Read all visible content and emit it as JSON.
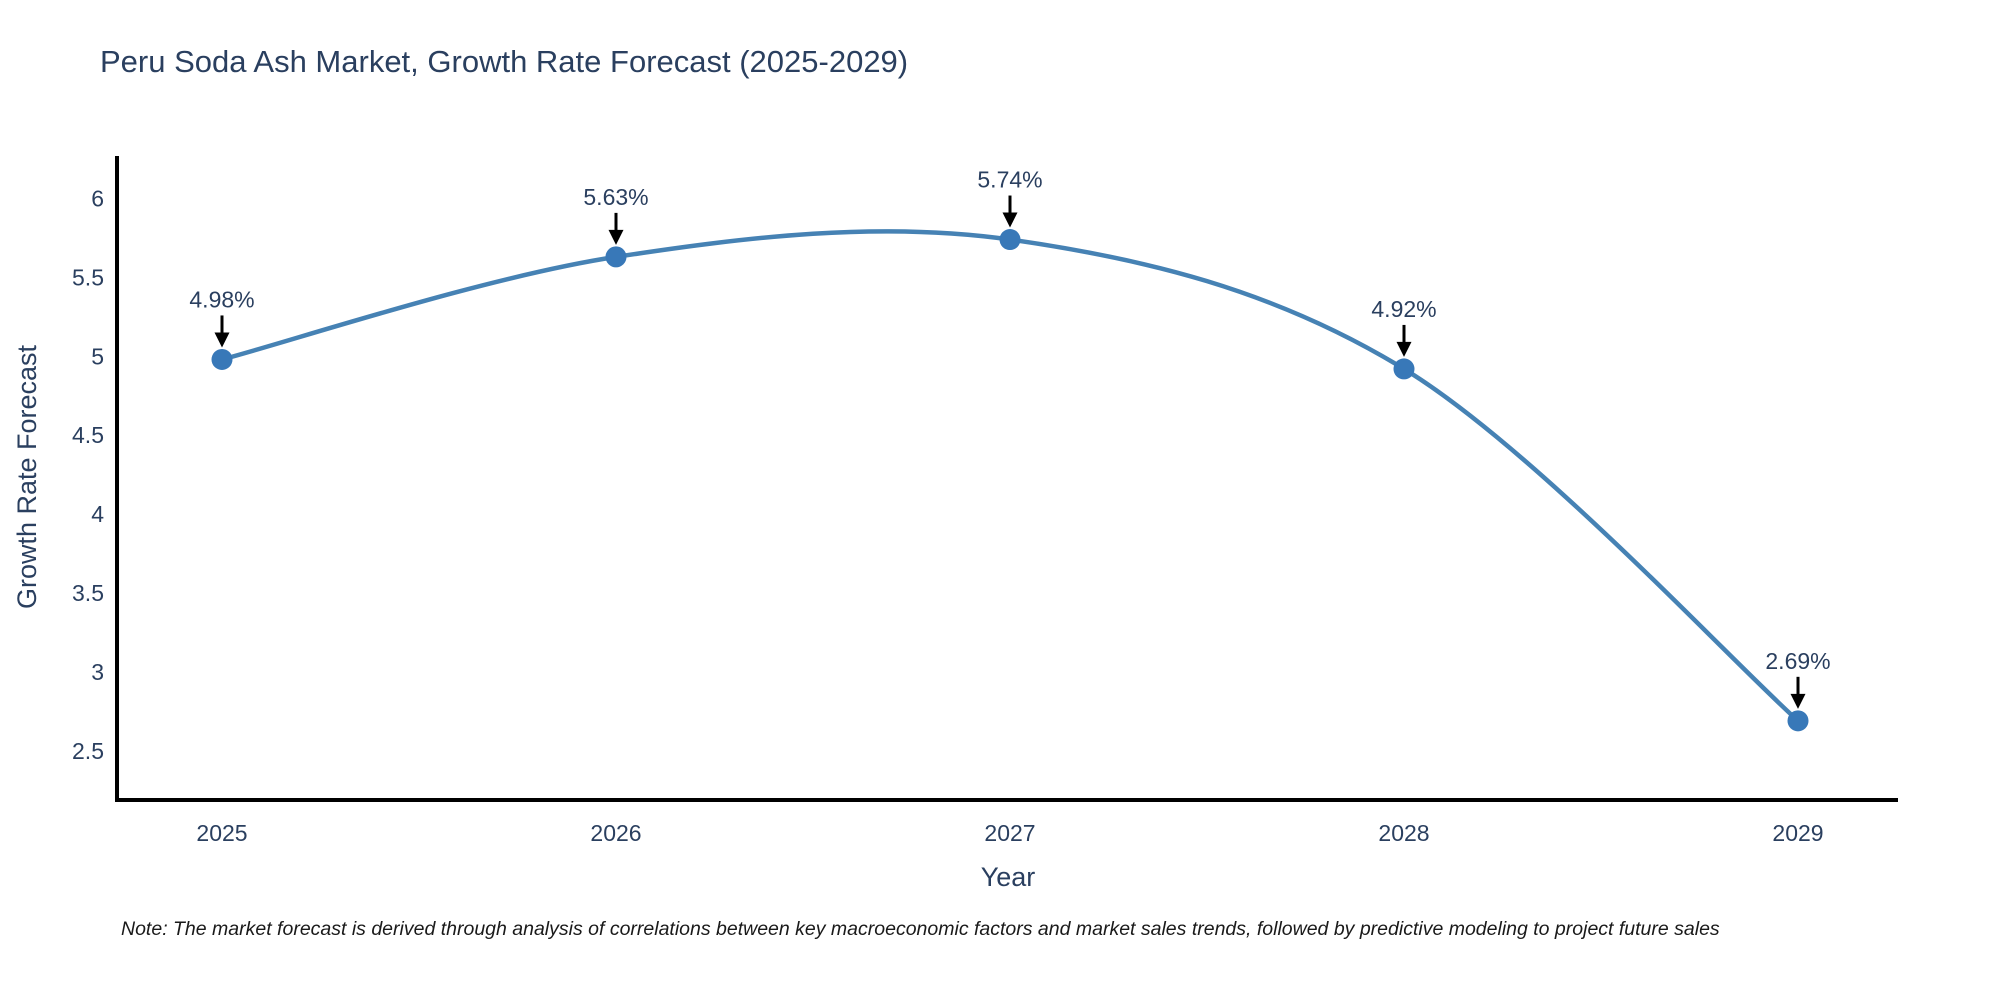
{
  "title": "Peru Soda Ash Market, Growth Rate Forecast (2025-2029)",
  "note": "Note: The market forecast is derived through analysis of correlations between key macroeconomic factors and market sales trends, followed by predictive modeling to project future sales",
  "colors": {
    "text": "#2a3f5f",
    "axis": "#000000",
    "line": "#4682b4",
    "marker": "#3878b8",
    "arrow": "#000000",
    "background": "#ffffff"
  },
  "chart_data": {
    "type": "line",
    "title": "Peru Soda Ash Market, Growth Rate Forecast (2025-2029)",
    "x": [
      2025,
      2026,
      2027,
      2028,
      2029
    ],
    "series": [
      {
        "name": "Growth Rate Forecast",
        "values": [
          4.98,
          5.63,
          5.74,
          4.92,
          2.69
        ]
      }
    ],
    "point_labels": [
      "4.98%",
      "5.63%",
      "5.74%",
      "4.92%",
      "2.69%"
    ],
    "xlabel": "Year",
    "ylabel": "Growth Rate Forecast",
    "yticks": [
      2.5,
      3,
      3.5,
      4,
      4.5,
      5,
      5.5,
      6
    ],
    "ylim": [
      2.18,
      6.26
    ],
    "line_shape": "spline",
    "grid": false,
    "legend_position": "none",
    "annotations_style": "black-arrow-down"
  }
}
